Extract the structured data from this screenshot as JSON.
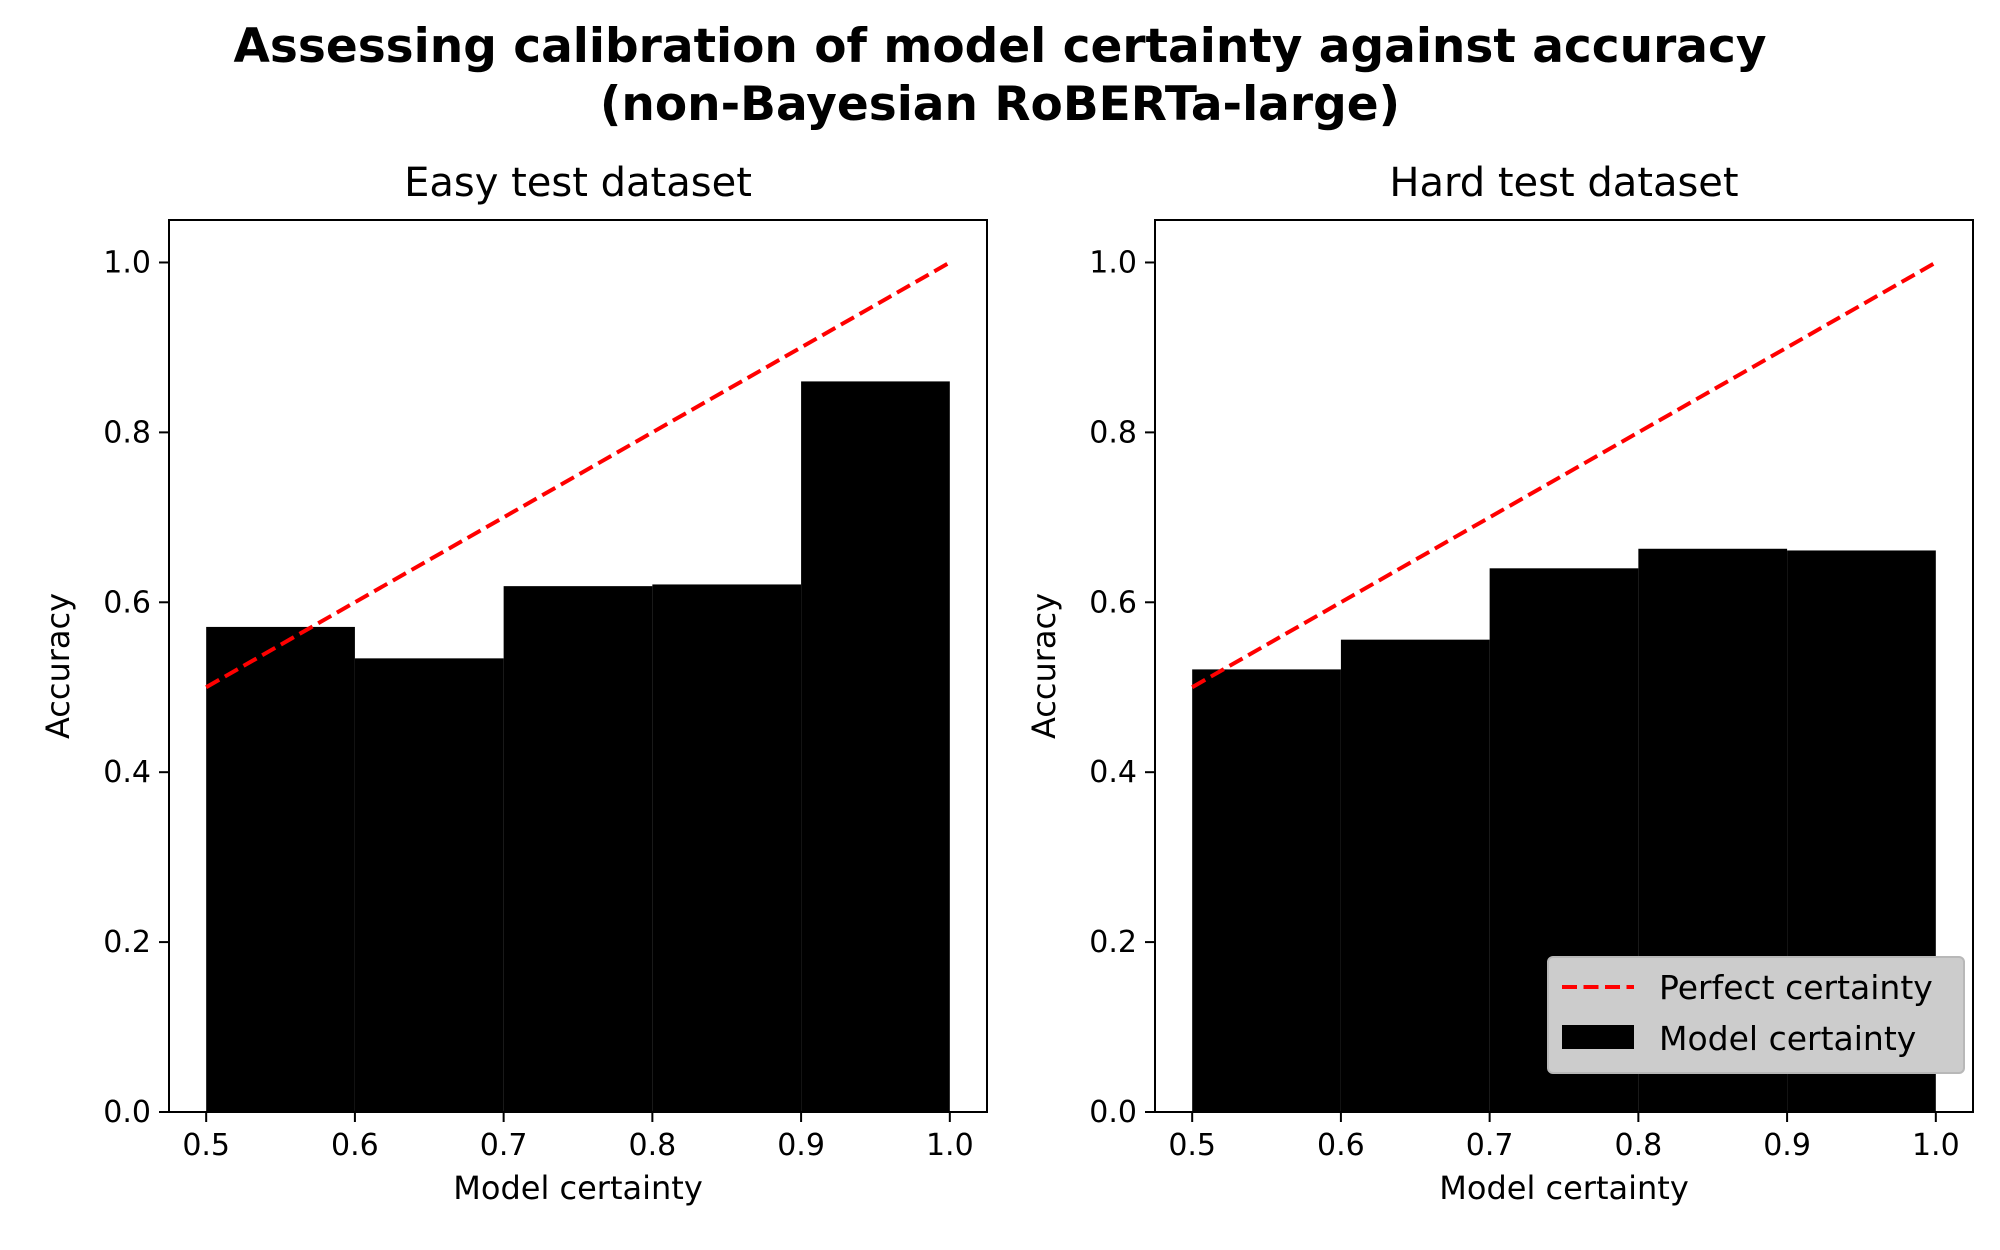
{
  "figure": {
    "title_line1": "Assessing calibration of model certainty against accuracy",
    "title_line2": "(non-Bayesian RoBERTa-large)"
  },
  "colors": {
    "bars": "#000000",
    "perfect_line": "#ff0000",
    "legend_bg": "#cccccc"
  },
  "chart_data": [
    {
      "type": "bar",
      "title": "Easy test dataset",
      "xlabel": "Model certainty",
      "ylabel": "Accuracy",
      "xlim": [
        0.475,
        1.025
      ],
      "ylim": [
        0,
        1.05
      ],
      "xticks": [
        "0.5",
        "0.6",
        "0.7",
        "0.8",
        "0.9",
        "1.0"
      ],
      "yticks": [
        "0.0",
        "0.2",
        "0.4",
        "0.6",
        "0.8",
        "1.0"
      ],
      "bins": [
        [
          0.5,
          0.6
        ],
        [
          0.6,
          0.7
        ],
        [
          0.7,
          0.8
        ],
        [
          0.8,
          0.9
        ],
        [
          0.9,
          1.0
        ]
      ],
      "values": [
        0.571,
        0.534,
        0.619,
        0.621,
        0.86
      ],
      "series": [
        {
          "name": "Perfect certainty",
          "type": "line",
          "style": "dashed",
          "x": [
            0.5,
            1.0
          ],
          "y": [
            0.5,
            1.0
          ]
        },
        {
          "name": "Model certainty",
          "type": "bar"
        }
      ],
      "legend": false
    },
    {
      "type": "bar",
      "title": "Hard test dataset",
      "xlabel": "Model certainty",
      "ylabel": "Accuracy",
      "xlim": [
        0.475,
        1.025
      ],
      "ylim": [
        0,
        1.05
      ],
      "xticks": [
        "0.5",
        "0.6",
        "0.7",
        "0.8",
        "0.9",
        "1.0"
      ],
      "yticks": [
        "0.0",
        "0.2",
        "0.4",
        "0.6",
        "0.8",
        "1.0"
      ],
      "bins": [
        [
          0.5,
          0.6
        ],
        [
          0.6,
          0.7
        ],
        [
          0.7,
          0.8
        ],
        [
          0.8,
          0.9
        ],
        [
          0.9,
          1.0
        ]
      ],
      "values": [
        0.521,
        0.556,
        0.64,
        0.663,
        0.661
      ],
      "series": [
        {
          "name": "Perfect certainty",
          "type": "line",
          "style": "dashed",
          "x": [
            0.5,
            1.0
          ],
          "y": [
            0.5,
            1.0
          ]
        },
        {
          "name": "Model certainty",
          "type": "bar"
        }
      ],
      "legend": "lower right",
      "legend_entries": [
        "Perfect certainty",
        "Model certainty"
      ]
    }
  ]
}
